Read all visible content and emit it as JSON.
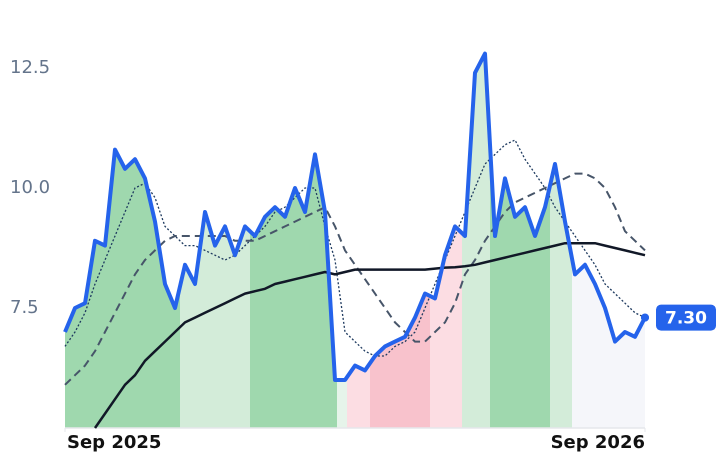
{
  "chart_data": {
    "type": "line",
    "xlim": [
      0,
      58
    ],
    "xticks": [
      {
        "value": 0,
        "label": "Sep 2025"
      },
      {
        "value": 58,
        "label": "Sep 2026"
      }
    ],
    "ylim": [
      5,
      13.5
    ],
    "yticks": [
      {
        "value": 7.5,
        "label": "7.5"
      },
      {
        "value": 10,
        "label": "10.0"
      },
      {
        "value": 12.5,
        "label": "12.5"
      }
    ],
    "x": [
      0,
      1,
      2,
      3,
      4,
      5,
      6,
      7,
      8,
      9,
      10,
      11,
      12,
      13,
      14,
      15,
      16,
      17,
      18,
      19,
      20,
      21,
      22,
      23,
      24,
      25,
      26,
      27,
      28,
      29,
      30,
      31,
      32,
      33,
      34,
      35,
      36,
      37,
      38,
      39,
      40,
      41,
      42,
      43,
      44,
      45,
      46,
      47,
      48,
      49,
      50,
      51,
      52,
      53,
      54,
      55,
      56,
      57,
      58
    ],
    "regions": [
      {
        "start": 0,
        "end": 11.5,
        "color": "#9fd8ae"
      },
      {
        "start": 11.5,
        "end": 18.5,
        "color": "#d3ecd9"
      },
      {
        "start": 18.5,
        "end": 27.2,
        "color": "#9fd8ae"
      },
      {
        "start": 27.2,
        "end": 28.2,
        "color": "#e6f4ea"
      },
      {
        "start": 28.2,
        "end": 30.5,
        "color": "#fcdde3"
      },
      {
        "start": 30.5,
        "end": 36.5,
        "color": "#f8c2cc"
      },
      {
        "start": 36.5,
        "end": 39.7,
        "color": "#fcdde3"
      },
      {
        "start": 39.7,
        "end": 42.5,
        "color": "#d3ecd9"
      },
      {
        "start": 42.5,
        "end": 48.5,
        "color": "#9fd8ae"
      },
      {
        "start": 48.5,
        "end": 50.7,
        "color": "#d3ecd9"
      },
      {
        "start": 50.7,
        "end": 58,
        "color": "#f5f6fa"
      }
    ],
    "series": [
      {
        "color": "#1e3a5f",
        "style": "dotted",
        "width": 1.3,
        "values": [
          6.7,
          7.0,
          7.4,
          8.0,
          8.5,
          9.0,
          9.5,
          10.0,
          10.1,
          9.8,
          9.2,
          9.0,
          8.8,
          8.8,
          8.7,
          8.6,
          8.5,
          8.6,
          8.8,
          9.0,
          9.2,
          9.5,
          9.6,
          9.8,
          10.0,
          10.0,
          9.2,
          8.5,
          7.0,
          6.8,
          6.6,
          6.5,
          6.5,
          6.7,
          6.8,
          7.0,
          7.5,
          8.0,
          8.5,
          9.0,
          9.5,
          10.0,
          10.5,
          10.7,
          10.9,
          11.0,
          10.6,
          10.3,
          10.0,
          9.6,
          9.3,
          9.0,
          8.7,
          8.4,
          8.0,
          7.8,
          7.6,
          7.4,
          7.3
        ]
      },
      {
        "color": "#475569",
        "style": "dashed",
        "width": 2,
        "values": [
          5.9,
          6.1,
          6.3,
          6.6,
          7.0,
          7.4,
          7.8,
          8.2,
          8.5,
          8.7,
          8.9,
          9.0,
          9.0,
          9.0,
          9.0,
          9.0,
          9.0,
          8.9,
          8.9,
          8.9,
          9.0,
          9.1,
          9.2,
          9.3,
          9.4,
          9.5,
          9.6,
          9.2,
          8.7,
          8.4,
          8.1,
          7.8,
          7.5,
          7.2,
          7.0,
          6.8,
          6.8,
          7.0,
          7.2,
          7.6,
          8.2,
          8.5,
          8.9,
          9.2,
          9.5,
          9.7,
          9.8,
          9.9,
          10.0,
          10.1,
          10.2,
          10.3,
          10.3,
          10.2,
          10.0,
          9.6,
          9.1,
          8.9,
          8.7
        ]
      },
      {
        "color": "#111827",
        "style": "solid",
        "width": 2.5,
        "values": [
          null,
          null,
          null,
          5.0,
          5.3,
          5.6,
          5.9,
          6.1,
          6.4,
          6.6,
          6.8,
          7.0,
          7.2,
          7.3,
          7.4,
          7.5,
          7.6,
          7.7,
          7.8,
          7.85,
          7.9,
          8.0,
          8.05,
          8.1,
          8.15,
          8.2,
          8.25,
          8.2,
          8.25,
          8.3,
          8.3,
          8.3,
          8.3,
          8.3,
          8.3,
          8.3,
          8.3,
          8.32,
          8.34,
          8.35,
          8.37,
          8.4,
          8.45,
          8.5,
          8.55,
          8.6,
          8.65,
          8.7,
          8.75,
          8.8,
          8.85,
          8.85,
          8.85,
          8.85,
          8.8,
          8.75,
          8.7,
          8.65,
          8.6
        ]
      },
      {
        "color": "#2563eb",
        "style": "solid",
        "width": 4,
        "area": true,
        "values": [
          7.0,
          7.5,
          7.6,
          8.9,
          8.8,
          10.8,
          10.4,
          10.6,
          10.2,
          9.3,
          8.0,
          7.5,
          8.4,
          8.0,
          9.5,
          8.8,
          9.2,
          8.6,
          9.2,
          9.0,
          9.4,
          9.6,
          9.4,
          10.0,
          9.5,
          10.7,
          9.5,
          6.0,
          6.0,
          6.3,
          6.2,
          6.5,
          6.7,
          6.8,
          6.9,
          7.3,
          7.8,
          7.7,
          8.6,
          9.2,
          9.0,
          12.4,
          12.8,
          9.0,
          10.2,
          9.4,
          9.6,
          9.0,
          9.6,
          10.5,
          9.3,
          8.2,
          8.4,
          8.0,
          7.5,
          6.8,
          7.0,
          6.9,
          7.3
        ],
        "value_labels": [
          null,
          null,
          null,
          null,
          null,
          null,
          null,
          null,
          null,
          null,
          null,
          null,
          null,
          null,
          null,
          null,
          null,
          null,
          null,
          null,
          null,
          null,
          null,
          null,
          null,
          null,
          null,
          null,
          null,
          null,
          null,
          null,
          null,
          null,
          null,
          null,
          null,
          null,
          null,
          null,
          null,
          null,
          null,
          null,
          null,
          null,
          null,
          null,
          null,
          null,
          null,
          null,
          null,
          null,
          null,
          null,
          null,
          null,
          "7.30"
        ]
      }
    ]
  }
}
